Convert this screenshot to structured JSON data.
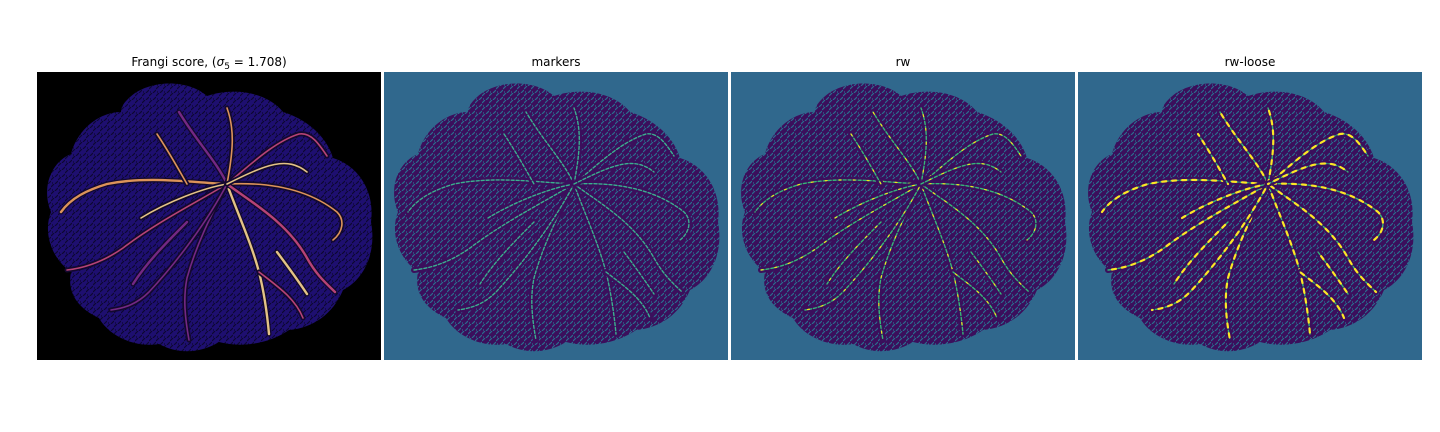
{
  "figure": {
    "panels": [
      {
        "id": "frangi",
        "title_prefix": "Frangi score, (",
        "title_sigma": "σ",
        "title_sub": "5",
        "title_suffix": " = 1.708)",
        "background": "#000000",
        "fill": "#1e0f70",
        "vessel_colors": [
          "#7f2c8e",
          "#c94a7e",
          "#f3a35e",
          "#fbd88f"
        ]
      },
      {
        "id": "markers",
        "title": "markers",
        "background": "#30688d",
        "fill": "#3b0f5c",
        "vessel_colors": [
          "#3ab08f",
          "#35b779"
        ]
      },
      {
        "id": "rw",
        "title": "rw",
        "background": "#30688d",
        "fill": "#3b0f5c",
        "vessel_colors": [
          "#35b779",
          "#f1e51d"
        ]
      },
      {
        "id": "rw-loose",
        "title": "rw-loose",
        "background": "#30688d",
        "fill": "#3b0f5c",
        "vessel_colors": [
          "#35b779",
          "#fde725"
        ]
      }
    ]
  }
}
